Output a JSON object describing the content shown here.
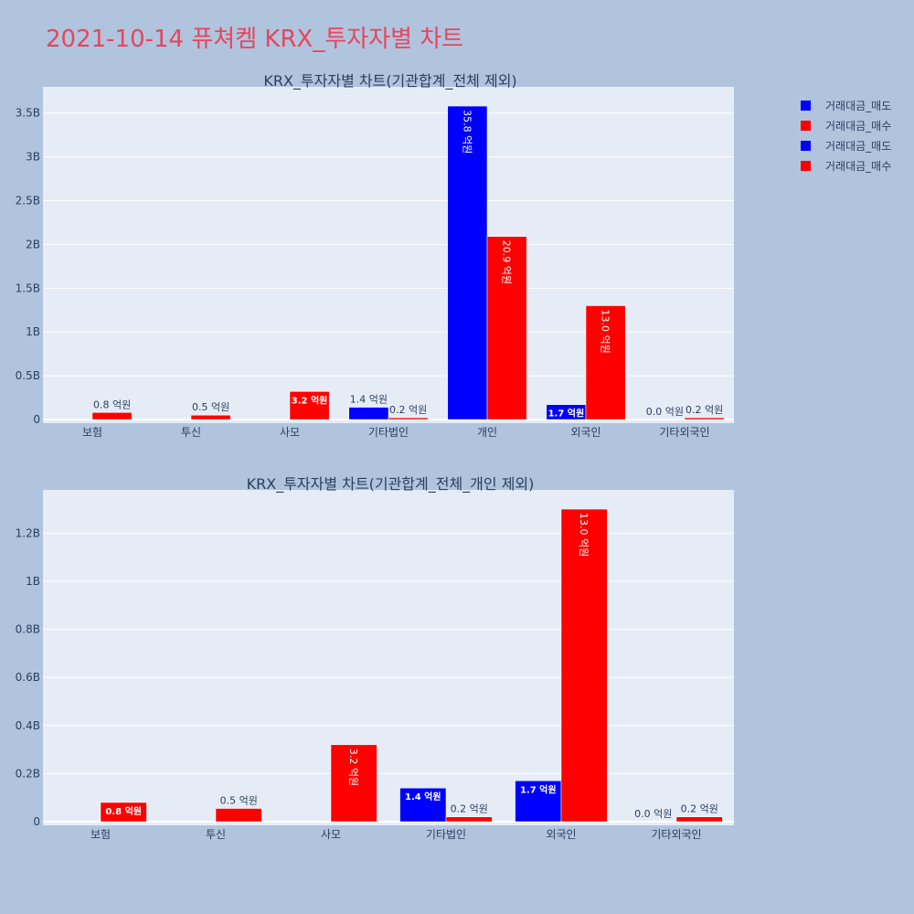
{
  "page": {
    "title": "2021-10-14 퓨쳐켐 KRX_투자자별 차트"
  },
  "colors": {
    "sell": "#0000ff",
    "buy": "#ff0000",
    "plot_bg": "#e5ecf6",
    "page_bg": "#b0c4de",
    "title": "#e8455c",
    "text": "#2a3f5f"
  },
  "legend": {
    "items": [
      {
        "label": "거래대금_매도",
        "color": "#0000ff"
      },
      {
        "label": "거래대금_매수",
        "color": "#ff0000"
      },
      {
        "label": "거래대금_매도",
        "color": "#0000ff"
      },
      {
        "label": "거래대금_매수",
        "color": "#ff0000"
      }
    ]
  },
  "chart_data": [
    {
      "type": "bar",
      "title": "KRX_투자자별 차트(기관합계_전체 제외)",
      "categories": [
        "보험",
        "투신",
        "사모",
        "기타법인",
        "개인",
        "외국인",
        "기타외국인"
      ],
      "ylim": [
        0,
        3.8
      ],
      "yticks": [
        0,
        0.5,
        1,
        1.5,
        2,
        2.5,
        3,
        3.5
      ],
      "ytick_labels": [
        "0",
        "0.5B",
        "1B",
        "1.5B",
        "2B",
        "2.5B",
        "3B",
        "3.5B"
      ],
      "unit_note": "values in billions (B)",
      "series": [
        {
          "name": "거래대금_매도",
          "color": "#0000ff",
          "values": [
            0,
            0,
            0,
            0.14,
            3.58,
            0.17,
            0.0
          ],
          "labels": [
            "",
            "",
            "",
            "1.4 억원",
            "35.8 억원",
            "1.7 억원",
            "0.0 억원"
          ]
        },
        {
          "name": "거래대금_매수",
          "color": "#ff0000",
          "values": [
            0.08,
            0.05,
            0.32,
            0.02,
            2.09,
            1.3,
            0.02
          ],
          "labels": [
            "0.8 억원",
            "0.5 억원",
            "3.2 억원",
            "0.2 억원",
            "20.9 억원",
            "13.0 억원",
            "0.2 억원"
          ]
        }
      ]
    },
    {
      "type": "bar",
      "title": "KRX_투자자별 차트(기관합계_전체_개인 제외)",
      "categories": [
        "보험",
        "투신",
        "사모",
        "기타법인",
        "외국인",
        "기타외국인"
      ],
      "ylim": [
        0,
        1.38
      ],
      "yticks": [
        0,
        0.2,
        0.4,
        0.6,
        0.8,
        1.0,
        1.2
      ],
      "ytick_labels": [
        "0",
        "0.2B",
        "0.4B",
        "0.6B",
        "0.8B",
        "1B",
        "1.2B"
      ],
      "unit_note": "values in billions (B)",
      "series": [
        {
          "name": "거래대금_매도",
          "color": "#0000ff",
          "values": [
            0,
            0,
            0,
            0.14,
            0.17,
            0.0
          ],
          "labels": [
            "",
            "",
            "",
            "1.4 억원",
            "1.7 억원",
            "0.0 억원"
          ]
        },
        {
          "name": "거래대금_매수",
          "color": "#ff0000",
          "values": [
            0.08,
            0.055,
            0.32,
            0.02,
            1.3,
            0.02
          ],
          "labels": [
            "0.8 억원",
            "0.5 억원",
            "3.2 억원",
            "0.2 억원",
            "13.0 억원",
            "0.2 억원"
          ]
        }
      ]
    }
  ]
}
